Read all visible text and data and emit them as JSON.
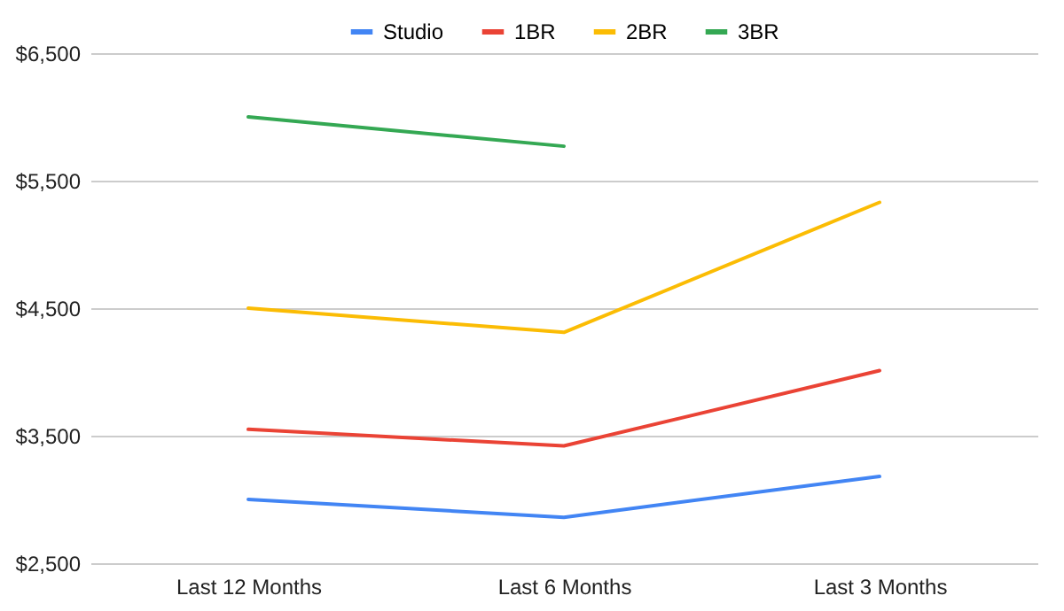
{
  "chart_data": {
    "type": "line",
    "categories": [
      "Last 12 Months",
      "Last 6 Months",
      "Last 3 Months"
    ],
    "series": [
      {
        "name": "Studio",
        "color": "#4285f4",
        "values": [
          3000,
          2860,
          3180
        ]
      },
      {
        "name": "1BR",
        "color": "#ea4335",
        "values": [
          3550,
          3420,
          4010
        ]
      },
      {
        "name": "2BR",
        "color": "#fbbc04",
        "values": [
          4500,
          4310,
          5330
        ]
      },
      {
        "name": "3BR",
        "color": "#34a853",
        "values": [
          6000,
          5770,
          null
        ]
      }
    ],
    "ylim": [
      2500,
      6500
    ],
    "yticks": [
      {
        "value": 2500,
        "label": "$2,500"
      },
      {
        "value": 3500,
        "label": "$3,500"
      },
      {
        "value": 4500,
        "label": "$4,500"
      },
      {
        "value": 5500,
        "label": "$5,500"
      },
      {
        "value": 6500,
        "label": "$6,500"
      }
    ],
    "grid": "y",
    "legend": "top",
    "marker": "none",
    "line_style": "solid"
  }
}
